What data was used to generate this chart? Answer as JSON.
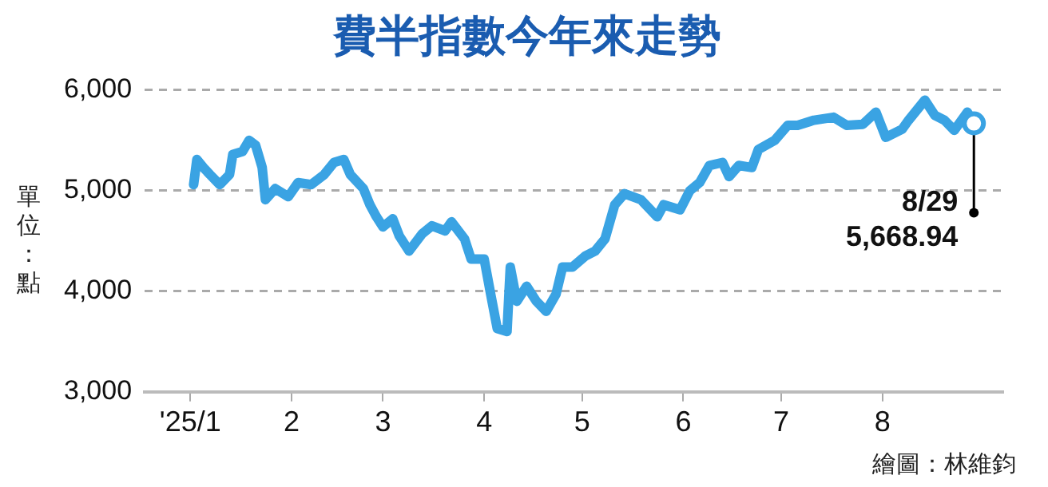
{
  "chart_data": {
    "type": "line",
    "title": "費半指數今年來走勢",
    "ylabel": "單位：點",
    "x": [
      "2025-01-02",
      "2025-01-03",
      "2025-01-05",
      "2025-01-07",
      "2025-01-10",
      "2025-01-13",
      "2025-01-14",
      "2025-01-17",
      "2025-01-19",
      "2025-01-21",
      "2025-01-23",
      "2025-01-24",
      "2025-01-27",
      "2025-01-31",
      "2025-02-03",
      "2025-02-07",
      "2025-02-11",
      "2025-02-14",
      "2025-02-17",
      "2025-02-19",
      "2025-02-23",
      "2025-02-25",
      "2025-02-27",
      "2025-03-01",
      "2025-03-04",
      "2025-03-06",
      "2025-03-09",
      "2025-03-13",
      "2025-03-16",
      "2025-03-20",
      "2025-03-22",
      "2025-03-26",
      "2025-03-28",
      "2025-04-01",
      "2025-04-03",
      "2025-04-05",
      "2025-04-08",
      "2025-04-09",
      "2025-04-11",
      "2025-04-14",
      "2025-04-17",
      "2025-04-20",
      "2025-04-23",
      "2025-04-25",
      "2025-04-28",
      "2025-05-02",
      "2025-05-05",
      "2025-05-08",
      "2025-05-11",
      "2025-05-14",
      "2025-05-19",
      "2025-05-24",
      "2025-05-26",
      "2025-05-31",
      "2025-06-03",
      "2025-06-06",
      "2025-06-09",
      "2025-06-13",
      "2025-06-15",
      "2025-06-18",
      "2025-06-22",
      "2025-06-24",
      "2025-06-29",
      "2025-07-03",
      "2025-07-06",
      "2025-07-11",
      "2025-07-17",
      "2025-07-21",
      "2025-07-26",
      "2025-07-30",
      "2025-08-02",
      "2025-08-07",
      "2025-08-09",
      "2025-08-14",
      "2025-08-17",
      "2025-08-20",
      "2025-08-23",
      "2025-08-27",
      "2025-08-29"
    ],
    "series": [
      {
        "color": "#3aa3e3",
        "values": [
          5060,
          5310,
          5230,
          5160,
          5060,
          5160,
          5360,
          5390,
          5500,
          5450,
          5230,
          4910,
          5020,
          4940,
          5080,
          5060,
          5160,
          5280,
          5310,
          5160,
          5020,
          4860,
          4740,
          4640,
          4720,
          4550,
          4400,
          4570,
          4650,
          4600,
          4690,
          4520,
          4320,
          4320,
          3970,
          3630,
          3600,
          4240,
          3900,
          4050,
          3900,
          3800,
          3970,
          4240,
          4240,
          4350,
          4400,
          4520,
          4860,
          4970,
          4910,
          4740,
          4860,
          4810,
          5000,
          5080,
          5250,
          5280,
          5140,
          5250,
          5230,
          5410,
          5500,
          5650,
          5650,
          5700,
          5730,
          5650,
          5660,
          5780,
          5530,
          5610,
          5700,
          5900,
          5750,
          5700,
          5600,
          5780,
          5668.94
        ]
      }
    ],
    "xlim": [
      "2024-12-18",
      "2025-09-07"
    ],
    "xticks": [
      {
        "value": "2025-01-01",
        "label": "'25/1"
      },
      {
        "value": "2025-02-01",
        "label": "2"
      },
      {
        "value": "2025-03-01",
        "label": "3"
      },
      {
        "value": "2025-04-01",
        "label": "4"
      },
      {
        "value": "2025-05-01",
        "label": "5"
      },
      {
        "value": "2025-06-01",
        "label": "6"
      },
      {
        "value": "2025-07-01",
        "label": "7"
      },
      {
        "value": "2025-08-01",
        "label": "8"
      }
    ],
    "ylim": [
      3000,
      6000
    ],
    "yticks": [
      {
        "value": 3000,
        "label": "3,000"
      },
      {
        "value": 4000,
        "label": "4,000"
      },
      {
        "value": 5000,
        "label": "5,000"
      },
      {
        "value": 6000,
        "label": "6,000"
      }
    ],
    "grid": "y",
    "legend": false,
    "marker": "none",
    "line_style": "solid",
    "annotations": [
      {
        "text": "8/29\n5,668.94",
        "x": "2025-08-29",
        "y": 5668.94
      },
      "繪圖：林維鈞"
    ]
  }
}
